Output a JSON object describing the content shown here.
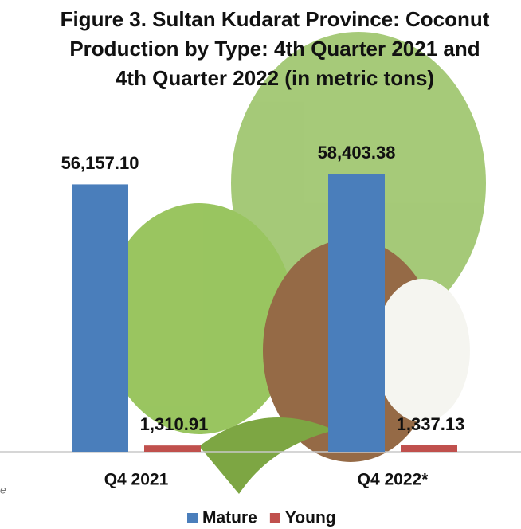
{
  "chart_data": {
    "type": "bar",
    "title": "Figure 3. Sultan Kudarat Province: Coconut Production by Type: 4th Quarter 2021 and 4th Quarter 2022 (in metric tons)",
    "categories": [
      "Q4 2021",
      "Q4 2022*"
    ],
    "series": [
      {
        "name": "Mature",
        "color": "#4a7ebb",
        "values": [
          56157.1,
          58403.38
        ],
        "value_labels": [
          "56,157.10",
          "58,403.38"
        ]
      },
      {
        "name": "Young",
        "color": "#c0504d",
        "values": [
          1310.91,
          1337.13
        ],
        "value_labels": [
          "1,310.91",
          "1,337.13"
        ]
      }
    ],
    "note": "e",
    "legend": "bottom"
  }
}
